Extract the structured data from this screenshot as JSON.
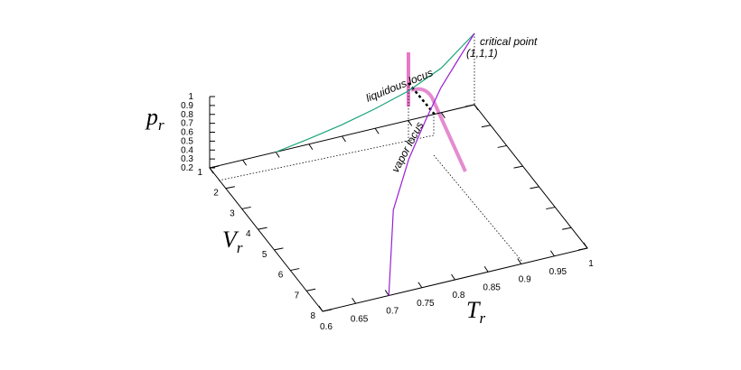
{
  "chart_data": {
    "type": "line3d",
    "xlabel": "T",
    "xlabel_sub": "r",
    "ylabel": "V",
    "ylabel_sub": "r",
    "zlabel": "p",
    "zlabel_sub": "r",
    "xlim": [
      0.6,
      1
    ],
    "xticks": [
      0.6,
      0.65,
      0.7,
      0.75,
      0.8,
      0.85,
      0.9,
      0.95,
      1
    ],
    "ylim": [
      1,
      8
    ],
    "yticks": [
      1,
      2,
      3,
      4,
      5,
      6,
      7,
      8
    ],
    "zlim": [
      0.2,
      1
    ],
    "zticks": [
      0.2,
      0.3,
      0.4,
      0.5,
      0.6,
      0.7,
      0.8,
      0.9,
      1
    ],
    "series": [
      {
        "color": "#1aa37a",
        "x": [
          0.7,
          0.75,
          0.8,
          0.85,
          0.9,
          0.95,
          1
        ],
        "y": [
          1,
          1,
          1,
          1,
          1,
          1,
          1
        ],
        "values": [
          0.2,
          0.26,
          0.33,
          0.42,
          0.53,
          0.7,
          1
        ]
      },
      {
        "color": "#9b1fd6",
        "x": [
          1,
          0.97,
          0.93,
          0.89,
          0.84,
          0.78,
          0.74,
          0.7
        ],
        "y": [
          1,
          1.3,
          1.8,
          2.5,
          3.5,
          5,
          6.5,
          8
        ],
        "values": [
          1,
          0.85,
          0.7,
          0.57,
          0.45,
          0.33,
          0.26,
          0.2
        ]
      }
    ],
    "annotations": [
      "critical point",
      "(1,1,1)",
      "liquidous locus",
      "vapor locus"
    ]
  }
}
